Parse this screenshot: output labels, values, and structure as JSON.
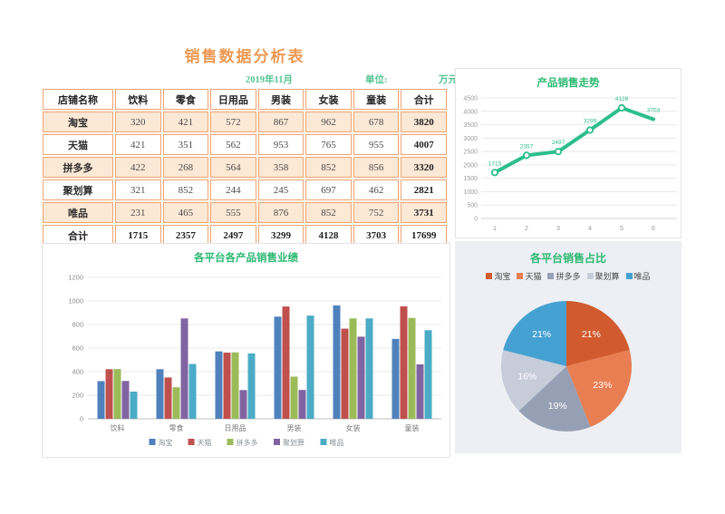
{
  "page": {
    "title": "销售数据分析表",
    "period": "2019年11月",
    "unit_label": "单位:",
    "unit_value": "万元"
  },
  "colors": {
    "title_orange": "#ED9853",
    "table_border_orange": "#F0A471",
    "table_row_peach": "#FBE8D5",
    "panel_title_green": "#2DB872",
    "subtitle_green": "#56C493",
    "line_green": "#2CBE8C",
    "pie_panel_bg": "#EDEFF4"
  },
  "table": {
    "headers": [
      "店铺名称",
      "饮料",
      "零食",
      "日用品",
      "男装",
      "女装",
      "童装",
      "合计"
    ],
    "rows": [
      {
        "name": "淘宝",
        "values": [
          320,
          421,
          572,
          867,
          962,
          678,
          3820
        ],
        "shaded": true
      },
      {
        "name": "天猫",
        "values": [
          421,
          351,
          562,
          953,
          765,
          955,
          4007
        ],
        "shaded": false
      },
      {
        "name": "拼多多",
        "values": [
          422,
          268,
          564,
          358,
          852,
          856,
          3320
        ],
        "shaded": true
      },
      {
        "name": "聚划算",
        "values": [
          321,
          852,
          244,
          245,
          697,
          462,
          2821
        ],
        "shaded": false
      },
      {
        "name": "唯品",
        "values": [
          231,
          465,
          555,
          876,
          852,
          752,
          3731
        ],
        "shaded": true
      }
    ],
    "total_row": {
      "name": "合计",
      "values": [
        1715,
        2357,
        2497,
        3299,
        4128,
        3703,
        17699
      ]
    }
  },
  "chart_data": [
    {
      "type": "line",
      "title": "产品销售走势",
      "x": [
        1,
        2,
        3,
        4,
        5,
        6
      ],
      "values": [
        1715,
        2357,
        2497,
        3299,
        4128,
        3703
      ],
      "xlabel": "",
      "ylabel": "",
      "ylim": [
        0,
        4500
      ],
      "ytick_step": 500,
      "grid": true,
      "data_labels": true,
      "line_color": "#2CBE8C",
      "marker": "circle-white-fill",
      "legend_position": "none"
    },
    {
      "type": "bar",
      "title": "各平台各产品销售业绩",
      "categories": [
        "饮料",
        "零食",
        "日用品",
        "男装",
        "女装",
        "童装"
      ],
      "series": [
        {
          "name": "淘宝",
          "color": "#4F81BD",
          "values": [
            320,
            421,
            572,
            867,
            962,
            678
          ]
        },
        {
          "name": "天猫",
          "color": "#C0504D",
          "values": [
            421,
            351,
            562,
            953,
            765,
            955
          ]
        },
        {
          "name": "拼多多",
          "color": "#9BBB59",
          "values": [
            422,
            268,
            564,
            358,
            852,
            856
          ]
        },
        {
          "name": "聚划算",
          "color": "#8064A2",
          "values": [
            321,
            852,
            244,
            245,
            697,
            462
          ]
        },
        {
          "name": "唯品",
          "color": "#4BACC6",
          "values": [
            231,
            465,
            555,
            876,
            852,
            752
          ]
        }
      ],
      "ylim": [
        0,
        1200
      ],
      "ytick_step": 200,
      "grid": true,
      "legend_position": "bottom"
    },
    {
      "type": "pie",
      "title": "各平台销售占比",
      "slices": [
        {
          "name": "淘宝",
          "pct": 21,
          "color": "#D15B2E"
        },
        {
          "name": "天猫",
          "pct": 23,
          "color": "#E97E52"
        },
        {
          "name": "拼多多",
          "pct": 19,
          "color": "#96A0B5"
        },
        {
          "name": "聚划算",
          "pct": 16,
          "color": "#C6CCDA"
        },
        {
          "name": "唯品",
          "pct": 21,
          "color": "#45A1D1"
        }
      ],
      "label_format": "percent",
      "legend_position": "top"
    }
  ]
}
